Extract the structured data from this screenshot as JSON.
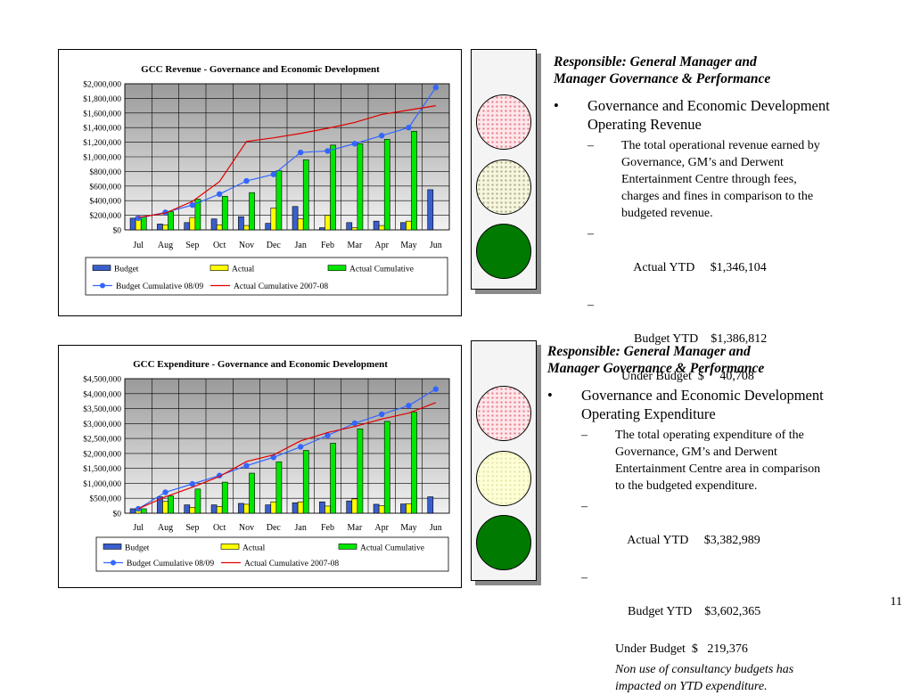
{
  "chart_data": [
    {
      "type": "bar",
      "title": "GCC Revenue - Governance and Economic Development",
      "categories": [
        "Jul",
        "Aug",
        "Sep",
        "Oct",
        "Nov",
        "Dec",
        "Jan",
        "Feb",
        "Mar",
        "Apr",
        "May",
        "Jun"
      ],
      "ylim": [
        0,
        2000000
      ],
      "yticks": [
        "$0",
        "$200,000",
        "$400,000",
        "$600,000",
        "$800,000",
        "$1,000,000",
        "$1,200,000",
        "$1,400,000",
        "$1,600,000",
        "$1,800,000",
        "$2,000,000"
      ],
      "grid": true,
      "legend_position": "bottom",
      "series": [
        {
          "name": "Budget",
          "kind": "bar",
          "color": "#3a5fcd",
          "values": [
            160000,
            80000,
            100000,
            150000,
            180000,
            90000,
            320000,
            30000,
            100000,
            120000,
            100000,
            550000
          ]
        },
        {
          "name": "Actual",
          "kind": "bar",
          "color": "#ffff00",
          "values": [
            180000,
            70000,
            170000,
            70000,
            60000,
            300000,
            150000,
            200000,
            30000,
            60000,
            120000,
            0
          ]
        },
        {
          "name": "Actual Cumulative",
          "kind": "bar",
          "color": "#00e600",
          "values": [
            180000,
            250000,
            420000,
            460000,
            510000,
            810000,
            960000,
            1160000,
            1180000,
            1240000,
            1350000,
            0
          ]
        },
        {
          "name": "Budget Cumulative 08/09",
          "kind": "line",
          "color": "#3366ff",
          "marker": true,
          "values": [
            160000,
            240000,
            340000,
            490000,
            670000,
            760000,
            1060000,
            1080000,
            1180000,
            1290000,
            1400000,
            1950000
          ]
        },
        {
          "name": "Actual Cumulative 2007-08",
          "kind": "line",
          "color": "#e00000",
          "marker": false,
          "values": [
            170000,
            230000,
            390000,
            660000,
            1210000,
            1260000,
            1320000,
            1390000,
            1470000,
            1580000,
            1640000,
            1700000
          ]
        }
      ]
    },
    {
      "type": "bar",
      "title": "GCC Expenditure - Governance and Economic Development",
      "categories": [
        "Jul",
        "Aug",
        "Sep",
        "Oct",
        "Nov",
        "Dec",
        "Jan",
        "Feb",
        "Mar",
        "Apr",
        "May",
        "Jun"
      ],
      "ylim": [
        0,
        4500000
      ],
      "yticks": [
        "$0",
        "$500,000",
        "$1,000,000",
        "$1,500,000",
        "$2,000,000",
        "$2,500,000",
        "$3,000,000",
        "$3,500,000",
        "$4,000,000",
        "$4,500,000"
      ],
      "grid": true,
      "legend_position": "bottom",
      "series": [
        {
          "name": "Budget",
          "kind": "bar",
          "color": "#3a5fcd",
          "values": [
            150000,
            550000,
            280000,
            280000,
            330000,
            280000,
            350000,
            380000,
            410000,
            300000,
            310000,
            550000
          ]
        },
        {
          "name": "Actual",
          "kind": "bar",
          "color": "#ffff00",
          "values": [
            150000,
            400000,
            200000,
            230000,
            300000,
            380000,
            380000,
            240000,
            480000,
            250000,
            320000,
            0
          ]
        },
        {
          "name": "Actual Cumulative",
          "kind": "bar",
          "color": "#00e600",
          "values": [
            150000,
            580000,
            810000,
            1040000,
            1340000,
            1720000,
            2100000,
            2340000,
            2820000,
            3070000,
            3380000,
            0
          ]
        },
        {
          "name": "Budget Cumulative 08/09",
          "kind": "line",
          "color": "#3366ff",
          "marker": true,
          "values": [
            150000,
            700000,
            980000,
            1260000,
            1590000,
            1870000,
            2220000,
            2600000,
            3010000,
            3310000,
            3600000,
            4150000
          ]
        },
        {
          "name": "Actual Cumulative 2007-08",
          "kind": "line",
          "color": "#e00000",
          "marker": false,
          "values": [
            150000,
            550000,
            870000,
            1230000,
            1730000,
            1950000,
            2420000,
            2700000,
            2900000,
            3150000,
            3350000,
            3700000
          ]
        }
      ]
    }
  ],
  "panels": [
    {
      "responsible_line1": "Responsible: General Manager and",
      "responsible_line2": "Manager Governance & Performance",
      "bullet_char": "•",
      "bullet_line1": "Governance and Economic Development",
      "bullet_line2": "Operating Revenue",
      "dash": "–",
      "desc_lines": [
        "The total operational revenue earned by",
        "Governance, GM’s and Derwent",
        "Entertainment Centre through fees,",
        "charges and fines in comparison to the",
        "budgeted revenue."
      ],
      "actual_ytd": "Actual YTD     $1,346,104",
      "budget_ytd": "Budget YTD    $1,386,812",
      "variance": "Under Budget  $     40,708",
      "note_lines": []
    },
    {
      "responsible_line1": "Responsible: General Manager and",
      "responsible_line2": "Manager Governance & Performance",
      "bullet_char": "•",
      "bullet_line1": "Governance and Economic Development",
      "bullet_line2": "Operating Expenditure",
      "dash": "–",
      "desc_lines": [
        "The total operating expenditure of the",
        "Governance, GM’s and Derwent",
        "Entertainment Centre area in comparison",
        "to the budgeted expenditure."
      ],
      "actual_ytd": "Actual YTD     $3,382,989",
      "budget_ytd": "Budget YTD    $3,602,365",
      "variance": "Under Budget  $   219,376",
      "note_lines": [
        "Non use of consultancy budgets has",
        "impacted on YTD expenditure."
      ]
    }
  ],
  "page_number": "11"
}
